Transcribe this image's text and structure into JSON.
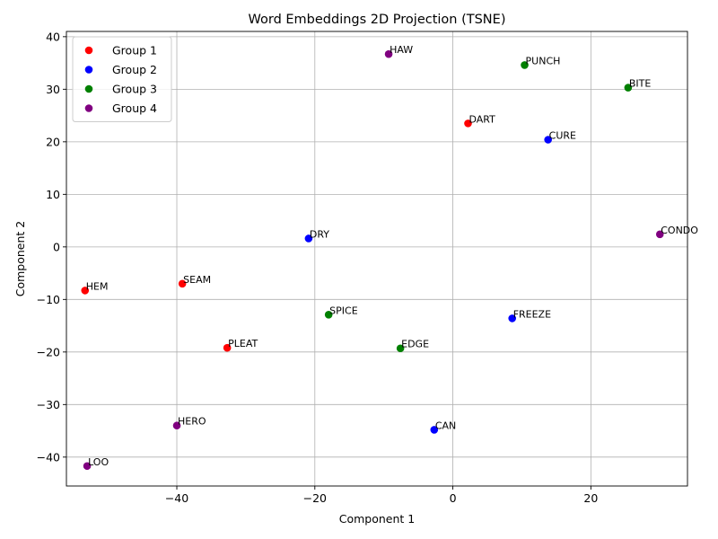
{
  "chart_data": {
    "type": "scatter",
    "title": "Word Embeddings 2D Projection (TSNE)",
    "xlabel": "Component 1",
    "ylabel": "Component 2",
    "xlim": [
      -56,
      34
    ],
    "ylim": [
      -45.5,
      41
    ],
    "xticks": [
      -40,
      -20,
      0,
      20
    ],
    "yticks": [
      -40,
      -30,
      -20,
      -10,
      0,
      10,
      20,
      30,
      40
    ],
    "xtick_labels": [
      "−40",
      "−20",
      "0",
      "20"
    ],
    "ytick_labels": [
      "−40",
      "−30",
      "−20",
      "−10",
      "0",
      "10",
      "20",
      "30",
      "40"
    ],
    "grid": true,
    "legend_position": "top-left",
    "series": [
      {
        "name": "Group 1",
        "color": "#ff0000",
        "points": [
          {
            "label": "DART",
            "x": 2.2,
            "y": 23.5
          },
          {
            "label": "SEAM",
            "x": -39.2,
            "y": -7.0
          },
          {
            "label": "HEM",
            "x": -53.3,
            "y": -8.3
          },
          {
            "label": "PLEAT",
            "x": -32.7,
            "y": -19.2
          }
        ]
      },
      {
        "name": "Group 2",
        "color": "#0000ff",
        "points": [
          {
            "label": "CURE",
            "x": 13.8,
            "y": 20.4
          },
          {
            "label": "DRY",
            "x": -20.9,
            "y": 1.6
          },
          {
            "label": "FREEZE",
            "x": 8.6,
            "y": -13.6
          },
          {
            "label": "CAN",
            "x": -2.7,
            "y": -34.8
          }
        ]
      },
      {
        "name": "Group 3",
        "color": "#008000",
        "points": [
          {
            "label": "PUNCH",
            "x": 10.4,
            "y": 34.6
          },
          {
            "label": "BITE",
            "x": 25.4,
            "y": 30.3
          },
          {
            "label": "SPICE",
            "x": -18.0,
            "y": -12.9
          },
          {
            "label": "EDGE",
            "x": -7.6,
            "y": -19.3
          }
        ]
      },
      {
        "name": "Group 4",
        "color": "#800080",
        "points": [
          {
            "label": "HAW",
            "x": -9.3,
            "y": 36.7
          },
          {
            "label": "CONDO",
            "x": 30.0,
            "y": 2.4
          },
          {
            "label": "HERO",
            "x": -40.0,
            "y": -34.0
          },
          {
            "label": "LOO",
            "x": -53.0,
            "y": -41.7
          }
        ]
      }
    ]
  }
}
